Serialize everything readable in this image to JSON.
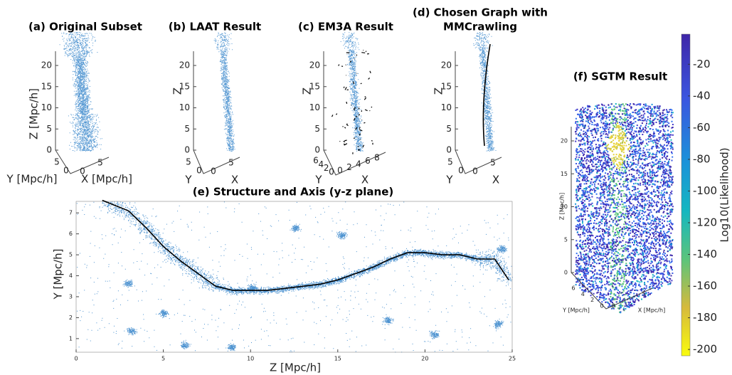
{
  "panels": [
    {
      "title": [
        "(a) Original Subset"
      ],
      "z_label": "Z [Mpc/h]",
      "y_label": "Y [Mpc/h]",
      "x_label": "X [Mpc/h]",
      "z_ticks": [
        0,
        5,
        10,
        15,
        20
      ],
      "y_ticks": [
        5,
        0
      ],
      "x_ticks": [
        0,
        5
      ]
    },
    {
      "title": [
        "(b) LAAT Result"
      ],
      "z_label": "Z",
      "y_label": "Y",
      "x_label": "X",
      "z_ticks": [
        0,
        5,
        10,
        15,
        20
      ],
      "y_ticks": [
        5,
        0
      ],
      "x_ticks": [
        0,
        5
      ]
    },
    {
      "title": [
        "(c) EM3A Result"
      ],
      "z_label": "Z",
      "y_label": "Y",
      "x_label": "X",
      "z_ticks": [
        0,
        5,
        10,
        15,
        20
      ],
      "y_ticks": [
        6,
        4,
        2,
        0
      ],
      "x_ticks": [
        0,
        2,
        4,
        6,
        8
      ]
    },
    {
      "title": [
        "(d) Chosen Graph with",
        "MMCrawling"
      ],
      "z_label": "Z",
      "y_label": "Y",
      "x_label": "X",
      "z_ticks": [
        0,
        5,
        10,
        15,
        20
      ],
      "y_ticks": [
        5,
        0
      ],
      "x_ticks": [
        0,
        5
      ]
    },
    {
      "title": [
        "(f) SGTM Result"
      ],
      "z_label": "Z [Mpc/h]",
      "y_label": "Y [Mpc/h]",
      "x_label": "X [Mpc/h]",
      "z_ticks": [
        0,
        5,
        10,
        15,
        20
      ],
      "y_ticks": [
        6,
        4,
        2,
        0
      ],
      "x_ticks": [
        0,
        5
      ]
    }
  ],
  "colorbar": {
    "label": "Log10(Likelihood)",
    "ylim": [
      -204,
      -1
    ],
    "yticks": [
      -20,
      -40,
      -60,
      -80,
      -100,
      -120,
      -140,
      -160,
      -180,
      -200
    ]
  },
  "chart_data": {
    "type": "line",
    "title": "(e) Structure and Axis (y-z plane)",
    "x_label": "Z [Mpc/h]",
    "y_label": "Y [Mpc/h]",
    "xlim": [
      0,
      25
    ],
    "ylim": [
      0.35,
      7.55
    ],
    "xticks": [
      0,
      5,
      10,
      15,
      20,
      25
    ],
    "yticks": [
      1,
      2,
      3,
      4,
      5,
      6,
      7
    ],
    "series": [
      {
        "color": "#000000",
        "x": [
          1.5,
          3,
          4,
          5,
          6,
          7,
          8,
          9,
          10,
          11,
          12,
          13,
          14,
          15,
          16,
          17,
          18,
          19,
          20,
          21,
          22,
          23,
          24,
          24.8
        ],
        "values": [
          7.6,
          7.1,
          6.3,
          5.4,
          4.7,
          4.1,
          3.5,
          3.3,
          3.3,
          3.3,
          3.4,
          3.5,
          3.6,
          3.8,
          4.1,
          4.4,
          4.8,
          5.1,
          5.1,
          5.0,
          5.0,
          4.8,
          4.8,
          3.8
        ]
      }
    ]
  }
}
